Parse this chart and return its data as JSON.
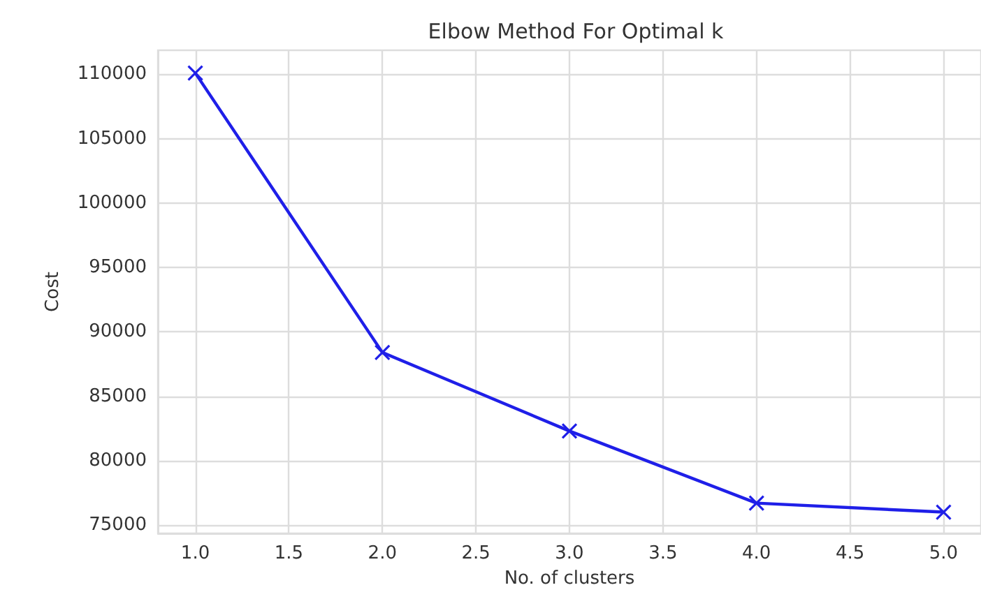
{
  "chart_data": {
    "type": "line",
    "title": "Elbow Method For Optimal k",
    "xlabel": "No. of clusters",
    "ylabel": "Cost",
    "x": [
      1,
      2,
      3,
      4,
      5
    ],
    "series": [
      {
        "color": "#1f1fe8",
        "values": [
          110100,
          88400,
          82300,
          76700,
          76000
        ]
      }
    ],
    "xlim": [
      0.8,
      5.2
    ],
    "xticks": [
      {
        "value": 1,
        "label": "1.0"
      },
      {
        "value": 1.5,
        "label": "1.5"
      },
      {
        "value": 2,
        "label": "2.0"
      },
      {
        "value": 2.5,
        "label": "2.5"
      },
      {
        "value": 3,
        "label": "3.0"
      },
      {
        "value": 3.5,
        "label": "3.5"
      },
      {
        "value": 4,
        "label": "4.0"
      },
      {
        "value": 4.5,
        "label": "4.5"
      },
      {
        "value": 5,
        "label": "5.0"
      }
    ],
    "ylim": [
      74350,
      111870
    ],
    "yticks": [
      75000,
      80000,
      85000,
      90000,
      95000,
      100000,
      105000,
      110000
    ],
    "grid": true,
    "marker": "cross",
    "line_style": "solid"
  }
}
